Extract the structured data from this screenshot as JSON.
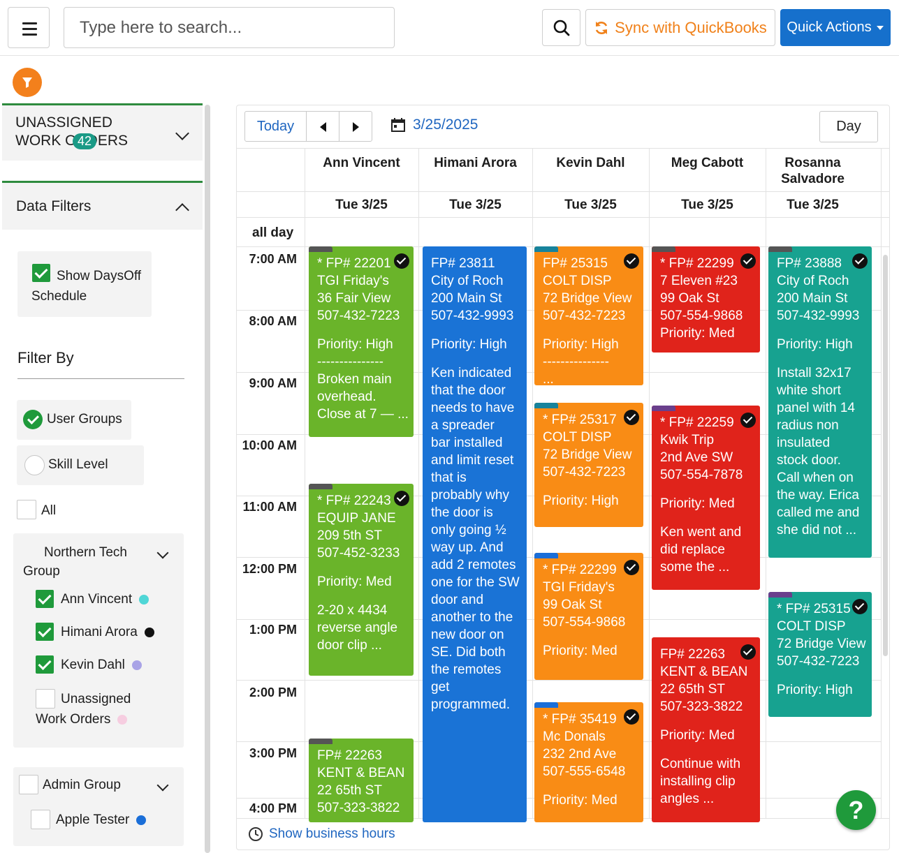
{
  "header": {
    "search_placeholder": "Type here to search...",
    "sync_label": "Sync with QuickBooks",
    "quick_actions_label": "Quick Actions"
  },
  "sidebar": {
    "unassigned_title": "UNASSIGNED WORK ORDERS",
    "unassigned_count": "42",
    "data_filters_title": "Data Filters",
    "show_daysoff": "Show DaysOff Schedule",
    "filter_by": "Filter By",
    "user_groups": "User Groups",
    "skill_level": "Skill Level",
    "all_label": "All",
    "northern_group": "Northern Tech Group",
    "members": [
      {
        "name": "Ann Vincent",
        "checked": true,
        "color": "#4fd6d6"
      },
      {
        "name": "Himani Arora",
        "checked": true,
        "color": "#111111"
      },
      {
        "name": "Kevin Dahl",
        "checked": true,
        "color": "#a9a3e6"
      },
      {
        "name": "Unassigned Work Orders",
        "checked": false,
        "color": "#f6cde0"
      }
    ],
    "admin_group": "Admin Group",
    "admin_member": {
      "name": "Apple Tester",
      "color": "#1a6ed8"
    }
  },
  "calendar": {
    "today_label": "Today",
    "date": "3/25/2025",
    "view_label": "Day",
    "all_day": "all day",
    "show_business_hours": "Show business hours",
    "resources": [
      {
        "name": "Ann Vincent",
        "date": "Tue 3/25"
      },
      {
        "name": "Himani Arora",
        "date": "Tue 3/25"
      },
      {
        "name": "Kevin Dahl",
        "date": "Tue 3/25"
      },
      {
        "name": "Meg Cabott",
        "date": "Tue 3/25"
      },
      {
        "name": "Rosanna Salvadore",
        "date": "Tue 3/25"
      }
    ],
    "times": [
      "7:00 AM",
      "8:00 AM",
      "9:00 AM",
      "10:00 AM",
      "11:00 AM",
      "12:00 PM",
      "1:00 PM",
      "2:00 PM",
      "3:00 PM",
      "4:00 PM"
    ],
    "events": {
      "ann1": [
        "* FP# 22201",
        "TGI Friday's",
        "36 Fair View",
        "507-432-7223",
        "",
        "Priority: High",
        "---------------",
        "Broken main",
        "overhead.",
        "Close at 7 — ..."
      ],
      "ann2": [
        "* FP# 22243",
        "EQUIP JANE",
        "209 5th ST",
        "507-452-3233",
        "",
        "Priority: Med",
        "",
        "2-20 x 4434",
        "reverse angle",
        "door clip        ..."
      ],
      "ann3": [
        "FP# 22263",
        "KENT & BEAN",
        "22 65th ST",
        "507-323-3822"
      ],
      "him1": [
        "FP# 23811",
        "City of Roch",
        "200 Main St",
        "507-432-9993",
        "",
        "Priority: High",
        "",
        "Ken indicated",
        "that the door",
        "needs to have",
        "a spreader",
        "bar installed",
        "and limit reset",
        "that is",
        "probably why",
        "the door is",
        "only going ½",
        "way up.  And",
        "add 2 remotes",
        "one for the SW",
        "door and",
        "another to the",
        "new door on",
        "SE.  Did both",
        "the remotes",
        "get",
        "programmed."
      ],
      "kev1": [
        "FP# 25315",
        "COLT DISP",
        "72 Bridge View",
        "507-432-7223",
        "",
        "Priority: High",
        "---------------",
        "..."
      ],
      "kev2": [
        "* FP# 25317",
        "COLT DISP",
        "72 Bridge View",
        "507-432-7223",
        "",
        "Priority: High"
      ],
      "kev3": [
        "* FP# 22299",
        "TGI Friday's",
        "99 Oak St",
        "507-554-9868",
        "",
        "Priority: Med"
      ],
      "kev4": [
        "* FP# 35419",
        "Mc Donals",
        "232 2nd Ave",
        "507-555-6548",
        "",
        "Priority: Med"
      ],
      "meg1": [
        "* FP# 22299",
        "7 Eleven #23",
        "99 Oak St",
        "507-554-9868",
        "Priority: Med"
      ],
      "meg2": [
        "* FP# 22259",
        "Kwik Trip",
        "2nd Ave SW",
        "507-554-7878",
        "",
        "Priority: Med",
        "",
        "Ken went and",
        "did replace",
        "some the      ..."
      ],
      "meg3": [
        "FP# 22263",
        "KENT & BEAN",
        "22 65th ST",
        "507-323-3822",
        "",
        "Priority: Med",
        "",
        "Continue with",
        "installing clip",
        "angles           ..."
      ],
      "ros1": [
        "FP# 23888",
        "City of Roch",
        "200 Main St",
        "507-432-9993",
        "",
        "Priority: High",
        "",
        "Install 32x17",
        "white short",
        "panel with 14",
        "radius non",
        "insulated",
        "stock door.",
        "Call when on",
        "the way. Erica",
        "called me and",
        "she did not ..."
      ],
      "ros2": [
        "* FP# 25315",
        "COLT DISP",
        "72 Bridge View",
        "507-432-7223",
        "",
        "Priority: High"
      ]
    }
  }
}
